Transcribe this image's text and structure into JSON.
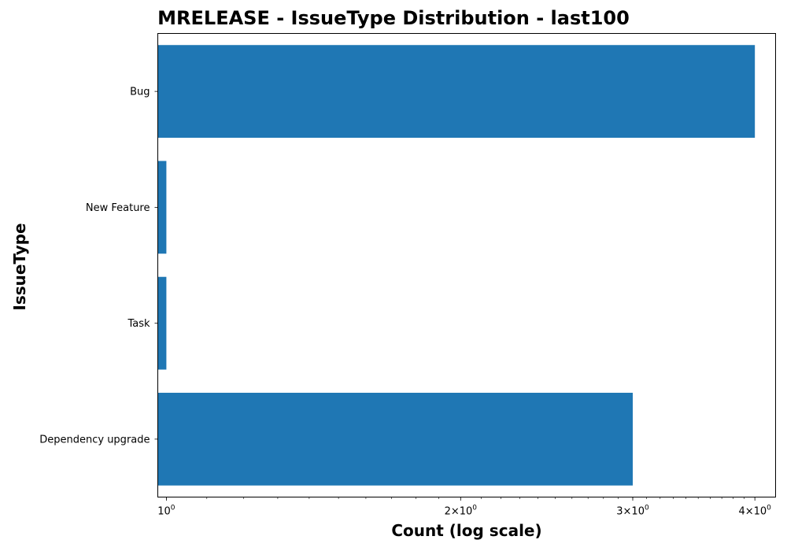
{
  "chart_data": {
    "type": "bar",
    "orientation": "horizontal",
    "title": "MRELEASE - IssueType Distribution - last100",
    "xlabel": "Count (log scale)",
    "ylabel": "IssueType",
    "x_scale": "log",
    "categories": [
      "Bug",
      "New Feature",
      "Task",
      "Dependency upgrade"
    ],
    "values": [
      4,
      1,
      1,
      3
    ],
    "xlim": [
      0.98,
      4.2
    ],
    "x_ticks": [
      {
        "value": 1,
        "label": "10^0"
      },
      {
        "value": 2,
        "label": "2×10^0"
      },
      {
        "value": 3,
        "label": "3×10^0"
      },
      {
        "value": 4,
        "label": "4×10^0"
      }
    ],
    "bar_color": "#1f77b4",
    "grid": false,
    "legend": "none"
  }
}
